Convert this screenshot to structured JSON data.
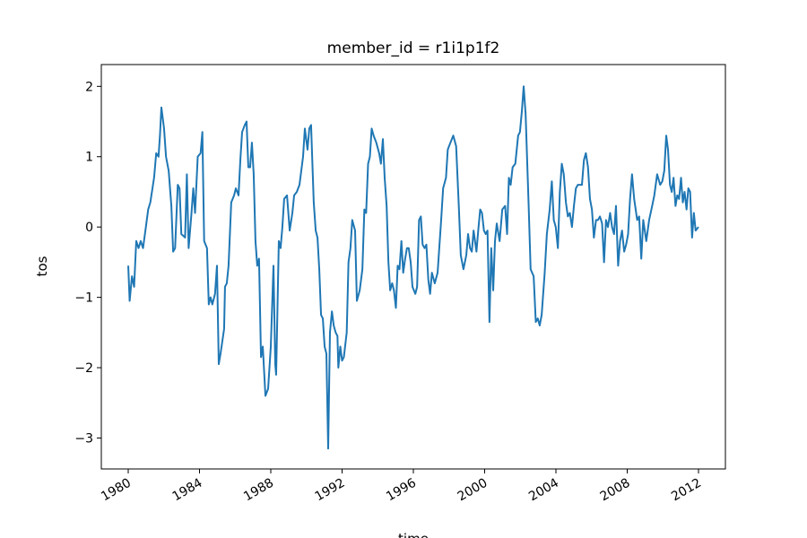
{
  "chart_data": {
    "type": "line",
    "title": "member_id = r1i1p1f2",
    "x_label": "time",
    "y_label": "tos",
    "xlim": [
      1978.49,
      2013.51
    ],
    "ylim": [
      -3.44,
      2.31
    ],
    "xticks": [
      1980,
      1984,
      1988,
      1992,
      1996,
      2000,
      2004,
      2008,
      2012
    ],
    "yticks": [
      {
        "value": -3,
        "label": "−3"
      },
      {
        "value": -2,
        "label": "−2"
      },
      {
        "value": -1,
        "label": "−1"
      },
      0,
      1,
      2
    ],
    "series": [
      {
        "name": "tos",
        "color": "#1f77b4",
        "x": [
          1980.0,
          1980.08,
          1980.21,
          1980.33,
          1980.45,
          1980.58,
          1980.7,
          1980.83,
          1980.99,
          1981.12,
          1981.24,
          1981.45,
          1981.57,
          1981.7,
          1981.78,
          1981.86,
          1982.01,
          1982.12,
          1982.27,
          1982.42,
          1982.52,
          1982.63,
          1982.78,
          1982.88,
          1982.98,
          1983.19,
          1983.29,
          1983.39,
          1983.55,
          1983.65,
          1983.75,
          1983.9,
          1984.06,
          1984.16,
          1984.26,
          1984.42,
          1984.52,
          1984.62,
          1984.72,
          1984.87,
          1984.98,
          1985.08,
          1985.18,
          1985.38,
          1985.43,
          1985.53,
          1985.63,
          1985.78,
          1985.94,
          1986.04,
          1986.19,
          1986.29,
          1986.39,
          1986.54,
          1986.64,
          1986.74,
          1986.84,
          1986.94,
          1987.04,
          1987.14,
          1987.24,
          1987.34,
          1987.45,
          1987.55,
          1987.7,
          1987.85,
          1988.0,
          1988.15,
          1988.25,
          1988.3,
          1988.45,
          1988.55,
          1988.65,
          1988.75,
          1988.91,
          1989.06,
          1989.21,
          1989.31,
          1989.46,
          1989.61,
          1989.81,
          1989.91,
          1990.06,
          1990.16,
          1990.26,
          1990.41,
          1990.52,
          1990.62,
          1990.72,
          1990.82,
          1990.92,
          1991.02,
          1991.12,
          1991.22,
          1991.32,
          1991.43,
          1991.53,
          1991.64,
          1991.74,
          1991.79,
          1991.9,
          1992.0,
          1992.1,
          1992.26,
          1992.36,
          1992.47,
          1992.57,
          1992.73,
          1992.83,
          1992.99,
          1993.14,
          1993.25,
          1993.35,
          1993.46,
          1993.56,
          1993.66,
          1993.77,
          1993.92,
          1994.08,
          1994.18,
          1994.29,
          1994.39,
          1994.5,
          1994.6,
          1994.7,
          1994.81,
          1994.91,
          1995.02,
          1995.12,
          1995.22,
          1995.33,
          1995.43,
          1995.54,
          1995.64,
          1995.74,
          1995.85,
          1995.95,
          1996.11,
          1996.21,
          1996.32,
          1996.42,
          1996.52,
          1996.63,
          1996.73,
          1996.84,
          1996.94,
          1997.04,
          1997.2,
          1997.36,
          1997.56,
          1997.67,
          1997.83,
          1997.93,
          1998.08,
          1998.24,
          1998.4,
          1998.55,
          1998.66,
          1998.81,
          1998.97,
          1999.07,
          1999.18,
          1999.28,
          1999.38,
          1999.54,
          1999.64,
          1999.75,
          1999.85,
          1999.96,
          2000.06,
          2000.16,
          2000.27,
          2000.37,
          2000.48,
          2000.58,
          2000.68,
          2000.84,
          2000.99,
          2001.15,
          2001.26,
          2001.36,
          2001.46,
          2001.57,
          2001.72,
          2001.88,
          2001.98,
          2002.09,
          2002.19,
          2002.3,
          2002.47,
          2002.58,
          2002.75,
          2002.87,
          2002.98,
          2003.09,
          2003.2,
          2003.37,
          2003.49,
          2003.65,
          2003.77,
          2003.88,
          2003.99,
          2004.11,
          2004.22,
          2004.33,
          2004.44,
          2004.56,
          2004.67,
          2004.78,
          2004.9,
          2005.01,
          2005.12,
          2005.23,
          2005.46,
          2005.57,
          2005.68,
          2005.8,
          2005.91,
          2006.02,
          2006.13,
          2006.25,
          2006.36,
          2006.47,
          2006.59,
          2006.7,
          2006.81,
          2006.92,
          2007.04,
          2007.15,
          2007.26,
          2007.37,
          2007.49,
          2007.6,
          2007.71,
          2007.83,
          2007.94,
          2008.05,
          2008.16,
          2008.27,
          2008.39,
          2008.56,
          2008.67,
          2008.79,
          2008.9,
          2009.07,
          2009.23,
          2009.4,
          2009.52,
          2009.68,
          2009.85,
          2009.97,
          2010.08,
          2010.19,
          2010.29,
          2010.4,
          2010.5,
          2010.6,
          2010.71,
          2010.81,
          2010.91,
          2011.02,
          2011.12,
          2011.22,
          2011.33,
          2011.43,
          2011.53,
          2011.64,
          2011.74,
          2011.84,
          2012.0
        ],
        "values": [
          -0.55,
          -1.05,
          -0.7,
          -0.85,
          -0.2,
          -0.3,
          -0.2,
          -0.3,
          0.0,
          0.25,
          0.35,
          0.7,
          1.05,
          1.0,
          1.3,
          1.7,
          1.4,
          1.0,
          0.8,
          0.3,
          -0.35,
          -0.3,
          0.6,
          0.55,
          -0.1,
          -0.15,
          0.75,
          -0.3,
          0.2,
          0.55,
          0.2,
          1.0,
          1.05,
          1.35,
          -0.2,
          -0.3,
          -1.1,
          -1.0,
          -1.1,
          -0.95,
          -0.55,
          -1.95,
          -1.8,
          -1.45,
          -0.85,
          -0.8,
          -0.55,
          0.35,
          0.45,
          0.55,
          0.45,
          0.95,
          1.35,
          1.45,
          1.5,
          0.85,
          0.85,
          1.2,
          0.75,
          -0.2,
          -0.55,
          -0.45,
          -1.85,
          -1.7,
          -2.4,
          -2.3,
          -1.7,
          -0.55,
          -1.95,
          -2.1,
          -0.2,
          -0.3,
          0.0,
          0.4,
          0.45,
          -0.05,
          0.2,
          0.45,
          0.5,
          0.6,
          1.0,
          1.4,
          1.1,
          1.4,
          1.45,
          0.35,
          -0.05,
          -0.15,
          -0.6,
          -1.25,
          -1.3,
          -1.7,
          -1.8,
          -3.15,
          -1.5,
          -1.2,
          -1.4,
          -1.5,
          -1.55,
          -2.0,
          -1.7,
          -1.9,
          -1.85,
          -1.5,
          -0.5,
          -0.3,
          0.1,
          -0.05,
          -1.05,
          -0.9,
          -0.6,
          0.25,
          0.2,
          0.9,
          1.0,
          1.4,
          1.3,
          1.2,
          1.05,
          0.9,
          1.25,
          0.7,
          0.3,
          -0.5,
          -0.9,
          -0.8,
          -0.9,
          -1.15,
          -0.55,
          -0.6,
          -0.2,
          -0.65,
          -0.45,
          -0.3,
          -0.3,
          -0.5,
          -0.85,
          -0.95,
          -0.85,
          0.1,
          0.15,
          -0.25,
          -0.3,
          -0.25,
          -0.75,
          -0.95,
          -0.65,
          -0.8,
          -0.65,
          0.1,
          0.55,
          0.7,
          1.1,
          1.2,
          1.3,
          1.15,
          0.3,
          -0.4,
          -0.6,
          -0.4,
          -0.1,
          -0.3,
          -0.35,
          -0.05,
          -0.35,
          -0.05,
          0.25,
          0.2,
          -0.05,
          -0.1,
          -0.05,
          -1.35,
          -0.3,
          -0.9,
          -0.2,
          0.05,
          -0.2,
          0.25,
          0.3,
          -0.1,
          0.7,
          0.6,
          0.85,
          0.9,
          1.3,
          1.35,
          1.65,
          2.0,
          1.6,
          0.3,
          -0.6,
          -0.7,
          -1.35,
          -1.3,
          -1.4,
          -1.25,
          -0.65,
          -0.1,
          0.25,
          0.65,
          0.1,
          0.0,
          -0.3,
          0.5,
          0.9,
          0.75,
          0.35,
          0.15,
          0.2,
          0.0,
          0.3,
          0.55,
          0.6,
          0.6,
          0.95,
          1.05,
          0.85,
          0.4,
          0.25,
          -0.15,
          0.1,
          0.1,
          0.15,
          0.05,
          -0.5,
          0.1,
          0.0,
          0.2,
          0.0,
          -0.1,
          0.3,
          -0.55,
          -0.2,
          -0.05,
          -0.35,
          -0.25,
          -0.1,
          0.4,
          0.75,
          0.4,
          0.1,
          0.15,
          -0.45,
          0.1,
          -0.2,
          0.1,
          0.3,
          0.45,
          0.75,
          0.6,
          0.65,
          0.8,
          1.3,
          1.1,
          0.6,
          0.5,
          0.7,
          0.3,
          0.45,
          0.4,
          0.7,
          0.35,
          0.5,
          0.25,
          0.55,
          0.5,
          -0.15,
          0.2,
          -0.05,
          0.0
        ]
      }
    ]
  }
}
